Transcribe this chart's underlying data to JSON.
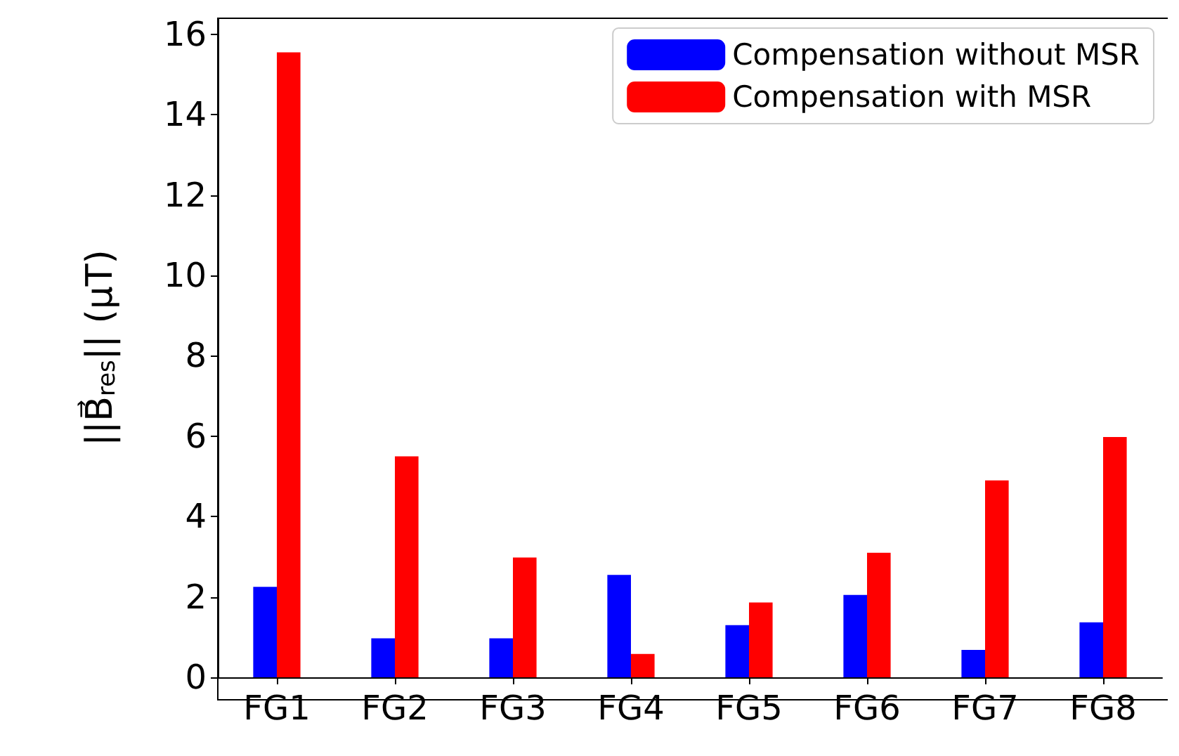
{
  "chart_data": {
    "type": "bar",
    "ylabel": "||B⃗$_{res}$|| (μT)",
    "categories": [
      "FG1",
      "FG2",
      "FG3",
      "FG4",
      "FG5",
      "FG6",
      "FG7",
      "FG8"
    ],
    "series": [
      {
        "name": "Compensation without MSR",
        "color": "#0000ff",
        "values": [
          2.25,
          0.97,
          0.97,
          2.55,
          1.3,
          2.05,
          0.68,
          1.37
        ]
      },
      {
        "name": "Compensation with MSR",
        "color": "#ff0000",
        "values": [
          15.55,
          5.5,
          2.98,
          0.58,
          1.86,
          3.1,
          4.9,
          5.98
        ]
      }
    ],
    "ylim": [
      0,
      16.4
    ],
    "yticks": [
      0,
      2,
      4,
      6,
      8,
      10,
      12,
      14,
      16
    ],
    "grid": false,
    "legend": "top right"
  }
}
